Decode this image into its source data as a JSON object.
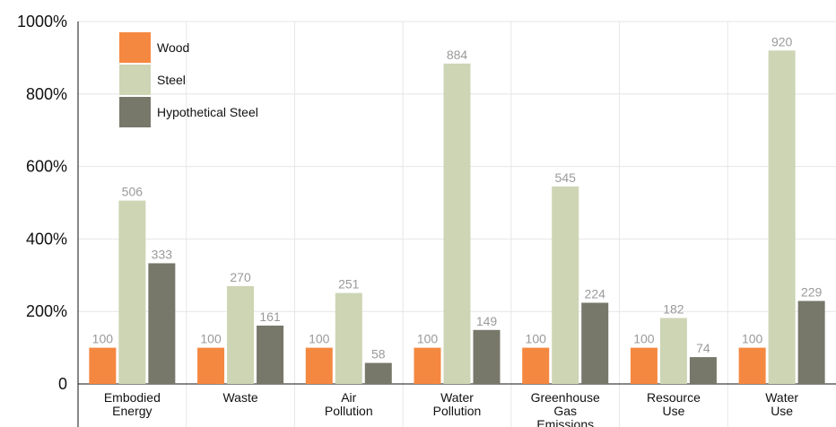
{
  "chart_data": {
    "type": "bar",
    "title": "",
    "xlabel": "",
    "ylabel": "",
    "categories": [
      [
        "Embodied",
        "Energy"
      ],
      [
        "Waste"
      ],
      [
        "Air",
        "Pollution"
      ],
      [
        "Water",
        "Pollution"
      ],
      [
        "Greenhouse",
        "Gas",
        "Emissions"
      ],
      [
        "Resource",
        "Use"
      ],
      [
        "Water",
        "Use"
      ]
    ],
    "series": [
      {
        "name": "Wood",
        "color": "#f58840",
        "values": [
          100,
          100,
          100,
          100,
          100,
          100,
          100
        ]
      },
      {
        "name": "Steel",
        "color": "#cdd5b5",
        "values": [
          506,
          270,
          251,
          884,
          545,
          182,
          920
        ]
      },
      {
        "name": "Hypothetical Steel",
        "color": "#77776a",
        "values": [
          333,
          161,
          58,
          149,
          224,
          74,
          229
        ]
      }
    ],
    "ylim": [
      0,
      1000
    ],
    "yticks": [
      {
        "value": 0,
        "label": "0"
      },
      {
        "value": 200,
        "label": "200%"
      },
      {
        "value": 400,
        "label": "400%"
      },
      {
        "value": 600,
        "label": "600%"
      },
      {
        "value": 800,
        "label": "800%"
      },
      {
        "value": 1000,
        "label": "1000%"
      }
    ],
    "grid": true,
    "legend_position": "top-left"
  }
}
